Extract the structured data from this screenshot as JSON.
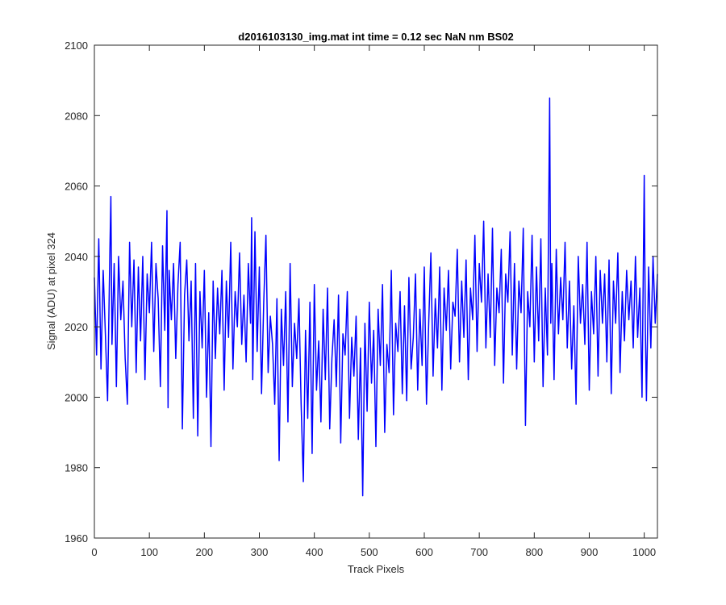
{
  "chart_data": {
    "type": "line",
    "title": "d2016103130_img.mat int time = 0.12 sec  NaN nm BS02",
    "xlabel": "Track Pixels",
    "ylabel": "Signal (ADU) at pixel 324",
    "xlim": [
      0,
      1024
    ],
    "ylim": [
      1960,
      2100
    ],
    "xticks": [
      "0",
      "100",
      "200",
      "300",
      "400",
      "500",
      "600",
      "700",
      "800",
      "900",
      "1000"
    ],
    "yticks": [
      "1960",
      "1980",
      "2000",
      "2020",
      "2040",
      "2060",
      "2080",
      "2100"
    ],
    "grid": false,
    "line_color": "#0000ff",
    "series": [
      {
        "x": [
          0,
          4,
          8,
          12,
          16,
          20,
          24,
          28,
          30,
          32,
          36,
          40,
          44,
          48,
          52,
          56,
          60,
          64,
          68,
          72,
          76,
          80,
          84,
          88,
          92,
          96,
          100,
          104,
          108,
          112,
          116,
          120,
          124,
          128,
          132,
          134,
          136,
          140,
          144,
          148,
          152,
          156,
          160,
          164,
          168,
          172,
          176,
          180,
          184,
          188,
          192,
          196,
          200,
          204,
          208,
          212,
          216,
          220,
          224,
          228,
          232,
          236,
          240,
          244,
          248,
          252,
          256,
          260,
          264,
          268,
          272,
          276,
          280,
          284,
          286,
          288,
          292,
          296,
          300,
          304,
          308,
          312,
          316,
          320,
          324,
          328,
          332,
          336,
          340,
          344,
          348,
          352,
          356,
          360,
          364,
          368,
          372,
          376,
          380,
          384,
          388,
          392,
          396,
          400,
          404,
          408,
          412,
          416,
          420,
          424,
          428,
          432,
          436,
          440,
          444,
          448,
          452,
          456,
          460,
          464,
          468,
          472,
          476,
          480,
          484,
          488,
          492,
          496,
          500,
          504,
          508,
          512,
          516,
          520,
          524,
          528,
          532,
          536,
          540,
          544,
          548,
          552,
          556,
          560,
          564,
          568,
          572,
          576,
          580,
          584,
          588,
          592,
          596,
          600,
          604,
          608,
          612,
          616,
          620,
          624,
          628,
          632,
          636,
          640,
          644,
          648,
          652,
          656,
          660,
          664,
          668,
          672,
          676,
          680,
          684,
          688,
          692,
          696,
          700,
          704,
          708,
          712,
          716,
          720,
          724,
          728,
          732,
          736,
          740,
          744,
          748,
          752,
          756,
          760,
          764,
          768,
          772,
          776,
          780,
          784,
          788,
          792,
          796,
          800,
          804,
          808,
          812,
          816,
          820,
          824,
          828,
          830,
          832,
          836,
          840,
          844,
          848,
          852,
          856,
          860,
          864,
          868,
          872,
          876,
          880,
          884,
          888,
          892,
          896,
          900,
          904,
          908,
          912,
          916,
          920,
          924,
          928,
          932,
          936,
          940,
          944,
          948,
          952,
          956,
          960,
          964,
          968,
          972,
          976,
          980,
          984,
          988,
          992,
          996,
          1000,
          1002,
          1004,
          1008,
          1012,
          1016,
          1020,
          1024
        ],
        "y": [
          2034,
          2012,
          2045,
          2008,
          2036,
          2018,
          1999,
          2040,
          2057,
          2015,
          2038,
          2003,
          2040,
          2022,
          2033,
          2011,
          1998,
          2044,
          2020,
          2039,
          2007,
          2037,
          2016,
          2040,
          2005,
          2035,
          2024,
          2044,
          2013,
          2038,
          2028,
          2003,
          2043,
          2019,
          2053,
          1997,
          2036,
          2022,
          2038,
          2011,
          2032,
          2044,
          1991,
          2029,
          2039,
          2016,
          2033,
          1994,
          2038,
          1989,
          2030,
          2014,
          2036,
          2000,
          2024,
          1986,
          2033,
          2011,
          2031,
          2018,
          2036,
          2002,
          2033,
          2017,
          2044,
          2008,
          2030,
          2020,
          2041,
          2015,
          2029,
          2010,
          2038,
          2021,
          2051,
          2005,
          2047,
          2013,
          2037,
          2001,
          2027,
          2046,
          2007,
          2023,
          2015,
          1998,
          2028,
          1982,
          2025,
          2009,
          2030,
          1993,
          2038,
          2003,
          2021,
          2011,
          2028,
          1998,
          1976,
          2019,
          1994,
          2027,
          1984,
          2032,
          2002,
          2016,
          1993,
          2025,
          2005,
          2031,
          1991,
          2011,
          2022,
          2003,
          2029,
          1987,
          2018,
          2012,
          2030,
          1994,
          2017,
          2006,
          2023,
          1988,
          2014,
          1972,
          2021,
          1996,
          2027,
          2004,
          2019,
          1986,
          2025,
          2009,
          2032,
          1990,
          2015,
          2007,
          2036,
          1995,
          2021,
          2013,
          2030,
          2001,
          2026,
          1999,
          2034,
          2008,
          2017,
          2035,
          2002,
          2025,
          2009,
          2037,
          1998,
          2021,
          2041,
          2006,
          2028,
          2014,
          2037,
          2002,
          2031,
          2019,
          2036,
          2008,
          2027,
          2023,
          2042,
          2010,
          2033,
          2017,
          2039,
          2005,
          2031,
          2022,
          2046,
          2013,
          2038,
          2027,
          2050,
          2014,
          2035,
          2017,
          2048,
          2009,
          2031,
          2024,
          2042,
          2004,
          2035,
          2027,
          2047,
          2012,
          2038,
          2008,
          2033,
          2024,
          2048,
          1992,
          2030,
          2020,
          2046,
          2010,
          2037,
          2016,
          2045,
          2003,
          2031,
          2012,
          2085,
          2021,
          2038,
          2005,
          2042,
          2018,
          2034,
          2022,
          2044,
          2014,
          2033,
          2008,
          2026,
          1998,
          2040,
          2021,
          2032,
          2015,
          2044,
          2002,
          2030,
          2018,
          2040,
          2006,
          2036,
          2021,
          2035,
          2010,
          2039,
          2001,
          2033,
          2021,
          2041,
          2007,
          2030,
          2016,
          2036,
          2022,
          2033,
          2014,
          2040,
          2017,
          2031,
          2000,
          2063,
          2020,
          1999,
          2037,
          2014,
          2040,
          2021,
          2035
        ]
      }
    ]
  }
}
